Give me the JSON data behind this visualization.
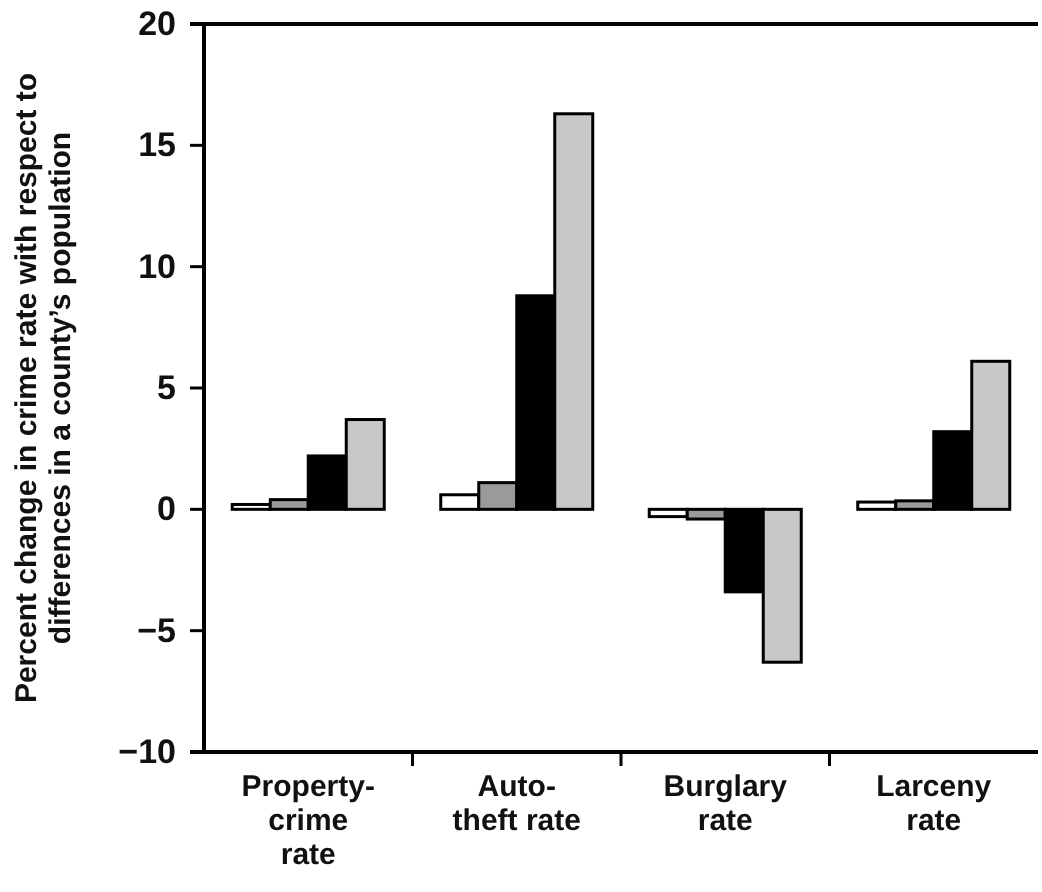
{
  "chart_data": {
    "type": "bar",
    "ylabel": "Percent change in crime rate with respect to differences in a county’s population",
    "categories": [
      "Property-crime rate",
      "Auto-theft rate",
      "Burglary rate",
      "Larceny rate"
    ],
    "series": [
      {
        "color": "#ffffff",
        "values": [
          0.2,
          0.6,
          -0.3,
          0.3
        ]
      },
      {
        "color": "#9a9a9a",
        "values": [
          0.4,
          1.1,
          -0.4,
          0.35
        ]
      },
      {
        "color": "#000000",
        "values": [
          2.2,
          8.8,
          -3.4,
          3.2
        ]
      },
      {
        "color": "#c8c8c8",
        "values": [
          3.7,
          16.3,
          -6.3,
          6.1
        ]
      }
    ],
    "ylim": [
      -10,
      20
    ],
    "yticks": [
      -10,
      -5,
      0,
      5,
      10,
      15,
      20
    ],
    "grid": false
  }
}
